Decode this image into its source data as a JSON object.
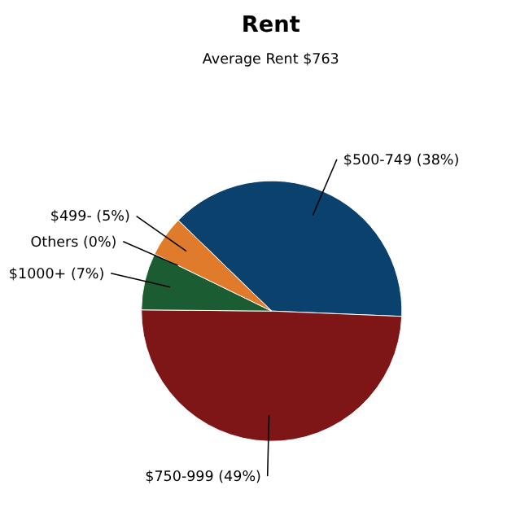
{
  "chart_data": {
    "type": "pie",
    "title": "Rent",
    "subtitle": "Average Rent  $763",
    "categories": [
      "$500-749",
      "$750-999",
      "$1000+",
      "Others",
      "$499-"
    ],
    "values": [
      38,
      49,
      7,
      0,
      5
    ],
    "value_labels": [
      "(38%)",
      "(49%)",
      "(7%)",
      "(0%)",
      "(5%)"
    ],
    "colors": [
      "#0b416d",
      "#7e1517",
      "#1b5c33",
      "#9a9a9a",
      "#e07b2b"
    ],
    "legend": false
  }
}
